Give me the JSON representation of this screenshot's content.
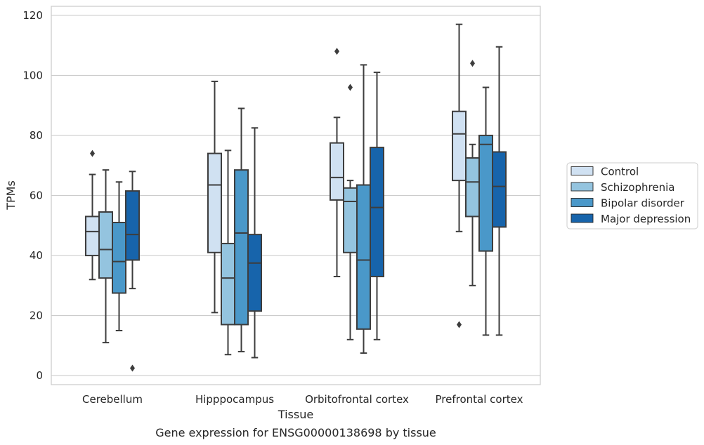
{
  "chart_data": {
    "type": "box",
    "title": "",
    "caption": "Gene expression for ENSG00000138698 by tissue",
    "xlabel": "Tissue",
    "ylabel": "TPMs",
    "ylim": [
      -3,
      123
    ],
    "yticks": [
      0,
      20,
      40,
      60,
      80,
      100,
      120
    ],
    "grid": true,
    "legend_position": "right",
    "categories": [
      "Cerebellum",
      "Hipppocampus",
      "Orbitofrontal cortex",
      "Prefrontal cortex"
    ],
    "series": [
      {
        "name": "Control",
        "color": "#d0e1f2",
        "boxes": [
          {
            "whisker_low": 32,
            "q1": 40,
            "median": 48,
            "q3": 53,
            "whisker_high": 67,
            "outliers": [
              74
            ]
          },
          {
            "whisker_low": 21,
            "q1": 41,
            "median": 63.5,
            "q3": 74,
            "whisker_high": 98,
            "outliers": []
          },
          {
            "whisker_low": 33,
            "q1": 58.5,
            "median": 66,
            "q3": 77.5,
            "whisker_high": 86,
            "outliers": [
              108
            ]
          },
          {
            "whisker_low": 48,
            "q1": 65,
            "median": 80.5,
            "q3": 88,
            "whisker_high": 117,
            "outliers": [
              17
            ]
          }
        ]
      },
      {
        "name": "Schizophrenia",
        "color": "#94c4df",
        "boxes": [
          {
            "whisker_low": 11,
            "q1": 32.5,
            "median": 42,
            "q3": 54.5,
            "whisker_high": 68.5,
            "outliers": []
          },
          {
            "whisker_low": 7,
            "q1": 17,
            "median": 32.5,
            "q3": 44,
            "whisker_high": 75,
            "outliers": []
          },
          {
            "whisker_low": 12,
            "q1": 41,
            "median": 58,
            "q3": 62.5,
            "whisker_high": 65,
            "outliers": [
              96
            ]
          },
          {
            "whisker_low": 30,
            "q1": 53,
            "median": 64.5,
            "q3": 72.5,
            "whisker_high": 77,
            "outliers": [
              104
            ]
          }
        ]
      },
      {
        "name": "Bipolar disorder",
        "color": "#4a98c9",
        "boxes": [
          {
            "whisker_low": 15,
            "q1": 27.5,
            "median": 38,
            "q3": 51,
            "whisker_high": 64.5,
            "outliers": []
          },
          {
            "whisker_low": 8,
            "q1": 17,
            "median": 47.5,
            "q3": 68.5,
            "whisker_high": 89,
            "outliers": []
          },
          {
            "whisker_low": 7.5,
            "q1": 15.5,
            "median": 38.5,
            "q3": 63.5,
            "whisker_high": 103.5,
            "outliers": []
          },
          {
            "whisker_low": 13.5,
            "q1": 41.5,
            "median": 77,
            "q3": 80,
            "whisker_high": 96,
            "outliers": []
          }
        ]
      },
      {
        "name": "Major depression",
        "color": "#1764ab",
        "boxes": [
          {
            "whisker_low": 29,
            "q1": 38.5,
            "median": 47,
            "q3": 61.5,
            "whisker_high": 68,
            "outliers": [
              2.5
            ]
          },
          {
            "whisker_low": 6,
            "q1": 21.5,
            "median": 37.5,
            "q3": 47,
            "whisker_high": 82.5,
            "outliers": []
          },
          {
            "whisker_low": 12,
            "q1": 33,
            "median": 56,
            "q3": 76,
            "whisker_high": 101,
            "outliers": []
          },
          {
            "whisker_low": 13.5,
            "q1": 49.5,
            "median": 63,
            "q3": 74.5,
            "whisker_high": 109.5,
            "outliers": []
          }
        ]
      }
    ]
  }
}
